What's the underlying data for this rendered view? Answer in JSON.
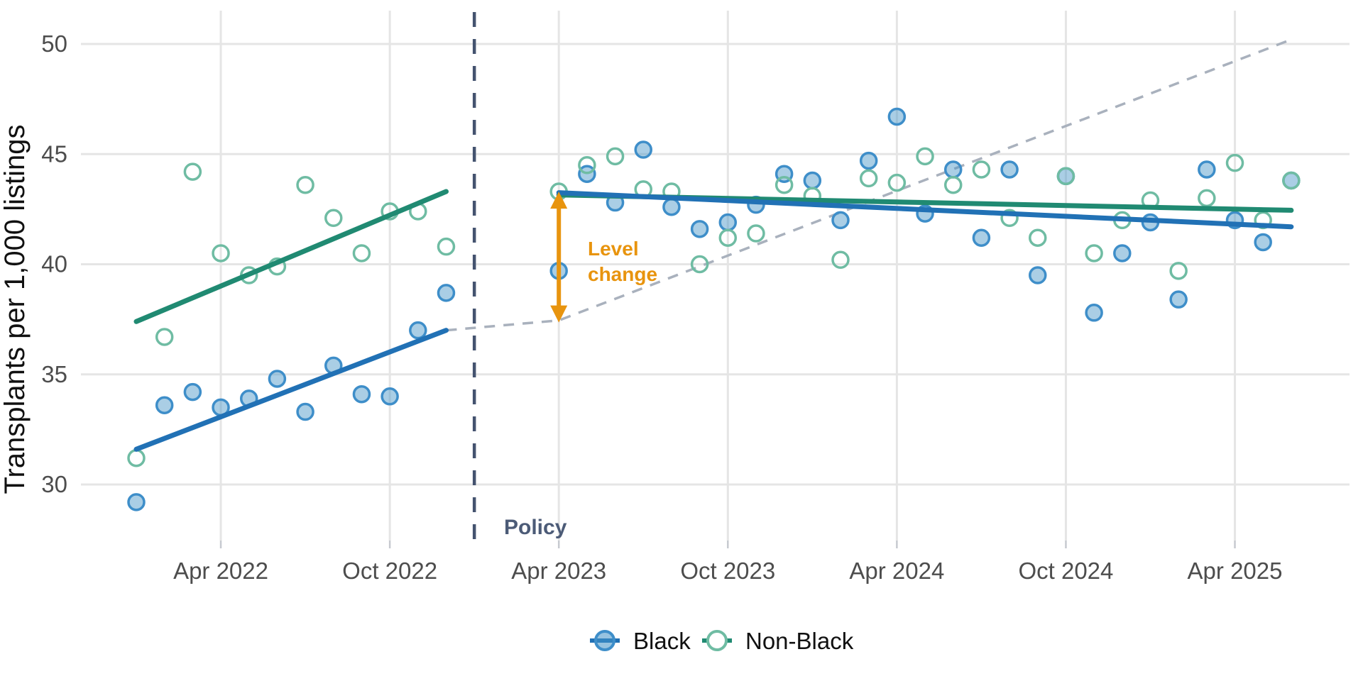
{
  "colors": {
    "black_line": "#2171b5",
    "black_point_stroke": "#3e8ec9",
    "black_point_fill": "#4292c6",
    "nonblack_line": "#208a72",
    "nonblack_point_stroke": "#6fbca3",
    "grid": "#e5e5e5",
    "tick_mark": "#c7cad0",
    "axis_text": "#4d4d4d",
    "policy_line": "#44536f",
    "policy_label": "#4c5b77",
    "counterfactual": "#a9b1bd",
    "annotation_orange": "#e8940e",
    "background": "#ffffff"
  },
  "chart_data": {
    "type": "scatter",
    "title": "",
    "xlabel": "",
    "ylabel": "Transplants per 1,000 listings",
    "ylim": [
      27.5,
      51.5
    ],
    "y_ticks": [
      30,
      35,
      40,
      45,
      50
    ],
    "x_ticks": [
      {
        "label": "Apr 2022",
        "month": "2022-04"
      },
      {
        "label": "Oct 2022",
        "month": "2022-10"
      },
      {
        "label": "Apr 2023",
        "month": "2023-04"
      },
      {
        "label": "Oct 2023",
        "month": "2023-10"
      },
      {
        "label": "Apr 2024",
        "month": "2024-04"
      },
      {
        "label": "Oct 2024",
        "month": "2024-10"
      },
      {
        "label": "Apr 2025",
        "month": "2025-04"
      }
    ],
    "grid": true,
    "legend_position": "bottom",
    "series": [
      {
        "name": "Black",
        "marker": "filled-circle",
        "points": [
          [
            "2022-01",
            29.2
          ],
          [
            "2022-02",
            33.6
          ],
          [
            "2022-03",
            34.2
          ],
          [
            "2022-04",
            33.5
          ],
          [
            "2022-05",
            33.9
          ],
          [
            "2022-06",
            34.8
          ],
          [
            "2022-07",
            33.3
          ],
          [
            "2022-08",
            35.4
          ],
          [
            "2022-09",
            34.1
          ],
          [
            "2022-10",
            34.0
          ],
          [
            "2022-11",
            37.0
          ],
          [
            "2022-12",
            38.7
          ],
          [
            "2023-04",
            39.7
          ],
          [
            "2023-05",
            44.1
          ],
          [
            "2023-06",
            42.8
          ],
          [
            "2023-07",
            45.2
          ],
          [
            "2023-08",
            42.6
          ],
          [
            "2023-09",
            41.6
          ],
          [
            "2023-10",
            41.9
          ],
          [
            "2023-11",
            42.7
          ],
          [
            "2023-12",
            44.1
          ],
          [
            "2024-01",
            43.8
          ],
          [
            "2024-02",
            42.0
          ],
          [
            "2024-03",
            44.7
          ],
          [
            "2024-04",
            46.7
          ],
          [
            "2024-05",
            42.3
          ],
          [
            "2024-06",
            44.3
          ],
          [
            "2024-07",
            41.2
          ],
          [
            "2024-08",
            44.3
          ],
          [
            "2024-09",
            39.5
          ],
          [
            "2024-10",
            44.0
          ],
          [
            "2024-11",
            37.8
          ],
          [
            "2024-12",
            40.5
          ],
          [
            "2025-01",
            41.9
          ],
          [
            "2025-02",
            38.4
          ],
          [
            "2025-03",
            44.3
          ],
          [
            "2025-04",
            42.0
          ],
          [
            "2025-05",
            41.0
          ],
          [
            "2025-06",
            43.8
          ]
        ]
      },
      {
        "name": "Non-Black",
        "marker": "open-circle",
        "points": [
          [
            "2022-01",
            31.2
          ],
          [
            "2022-02",
            36.7
          ],
          [
            "2022-03",
            44.2
          ],
          [
            "2022-04",
            40.5
          ],
          [
            "2022-05",
            39.5
          ],
          [
            "2022-06",
            39.9
          ],
          [
            "2022-07",
            43.6
          ],
          [
            "2022-08",
            42.1
          ],
          [
            "2022-09",
            40.5
          ],
          [
            "2022-10",
            42.4
          ],
          [
            "2022-11",
            42.4
          ],
          [
            "2022-12",
            40.8
          ],
          [
            "2023-04",
            43.3
          ],
          [
            "2023-05",
            44.5
          ],
          [
            "2023-06",
            44.9
          ],
          [
            "2023-07",
            43.4
          ],
          [
            "2023-08",
            43.3
          ],
          [
            "2023-09",
            40.0
          ],
          [
            "2023-10",
            41.2
          ],
          [
            "2023-11",
            41.4
          ],
          [
            "2023-12",
            43.6
          ],
          [
            "2024-01",
            43.1
          ],
          [
            "2024-02",
            40.2
          ],
          [
            "2024-03",
            43.9
          ],
          [
            "2024-04",
            43.7
          ],
          [
            "2024-05",
            44.9
          ],
          [
            "2024-06",
            43.6
          ],
          [
            "2024-07",
            44.3
          ],
          [
            "2024-08",
            42.1
          ],
          [
            "2024-09",
            41.2
          ],
          [
            "2024-10",
            44.0
          ],
          [
            "2024-11",
            40.5
          ],
          [
            "2024-12",
            42.0
          ],
          [
            "2025-01",
            42.9
          ],
          [
            "2025-02",
            39.7
          ],
          [
            "2025-03",
            43.0
          ],
          [
            "2025-04",
            44.6
          ],
          [
            "2025-05",
            42.0
          ],
          [
            "2025-06",
            43.8
          ]
        ]
      }
    ],
    "trend_lines": [
      {
        "series": "Black",
        "period": "pre",
        "points": [
          [
            "2022-01",
            31.6
          ],
          [
            "2022-12",
            37.0
          ]
        ]
      },
      {
        "series": "Non-Black",
        "period": "pre",
        "points": [
          [
            "2022-01",
            37.4
          ],
          [
            "2022-12",
            43.3
          ]
        ]
      },
      {
        "series": "Non-Black",
        "period": "post",
        "points": [
          [
            "2023-04",
            43.15
          ],
          [
            "2025-06",
            42.45
          ]
        ]
      },
      {
        "series": "Black",
        "period": "post",
        "points": [
          [
            "2023-04",
            43.25
          ],
          [
            "2025-06",
            41.7
          ]
        ]
      }
    ],
    "counterfactual_line": {
      "style": "dashed",
      "points": [
        [
          "2022-12",
          37.0
        ],
        [
          "2023-04",
          37.45
        ],
        [
          "2025-06",
          50.2
        ]
      ]
    },
    "policy_line": {
      "month": "2023-01",
      "label": "Policy",
      "style": "dashed"
    },
    "annotation": {
      "label_lines": [
        "Level",
        "change"
      ],
      "month": "2023-04",
      "from_value": 37.45,
      "to_value": 43.2,
      "shape": "double-headed-vertical-arrow"
    }
  },
  "legend": {
    "items": [
      {
        "label": "Black"
      },
      {
        "label": "Non-Black"
      }
    ]
  }
}
